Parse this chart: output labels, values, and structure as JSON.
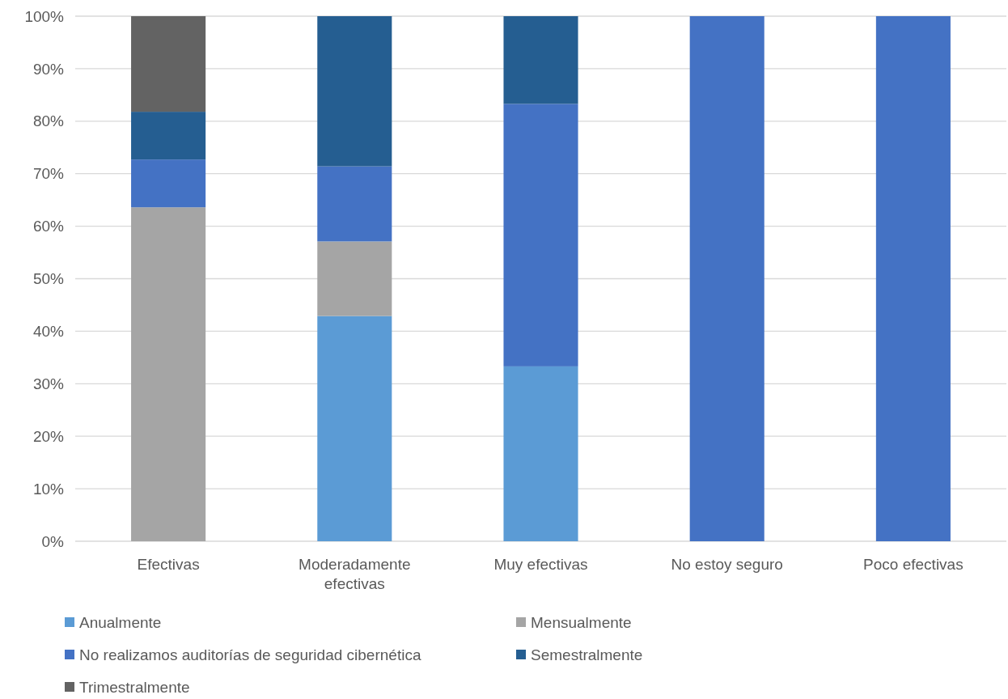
{
  "chart_data": {
    "type": "bar",
    "stacked": true,
    "categories": [
      "Efectivas",
      "Moderadamente efectivas",
      "Muy efectivas",
      "No estoy seguro",
      "Poco efectivas"
    ],
    "series": [
      {
        "name": "Anualmente",
        "color": "#5b9bd5",
        "values": [
          0,
          42.9,
          33.3,
          0,
          0
        ]
      },
      {
        "name": "Mensualmente",
        "color": "#a5a5a5",
        "values": [
          63.6,
          14.2,
          0,
          0,
          0
        ]
      },
      {
        "name": "No realizamos auditorías de seguridad cibernética",
        "color": "#4472c4",
        "values": [
          9.1,
          14.3,
          50,
          100,
          100
        ]
      },
      {
        "name": "Semestralmente",
        "color": "#255e91",
        "values": [
          9.1,
          28.6,
          16.7,
          0,
          0
        ]
      },
      {
        "name": "Trimestralmente",
        "color": "#636363",
        "values": [
          18.2,
          0,
          0,
          0,
          0
        ]
      }
    ],
    "ylim": [
      0,
      100
    ],
    "yticks": [
      {
        "value": 0,
        "label": "0%"
      },
      {
        "value": 10,
        "label": "10%"
      },
      {
        "value": 20,
        "label": "20%"
      },
      {
        "value": 30,
        "label": "30%"
      },
      {
        "value": 40,
        "label": "40%"
      },
      {
        "value": 50,
        "label": "50%"
      },
      {
        "value": 60,
        "label": "60%"
      },
      {
        "value": 70,
        "label": "70%"
      },
      {
        "value": 80,
        "label": "80%"
      },
      {
        "value": 90,
        "label": "90%"
      },
      {
        "value": 100,
        "label": "100%"
      }
    ],
    "grid": "y",
    "legend": "bottom"
  }
}
